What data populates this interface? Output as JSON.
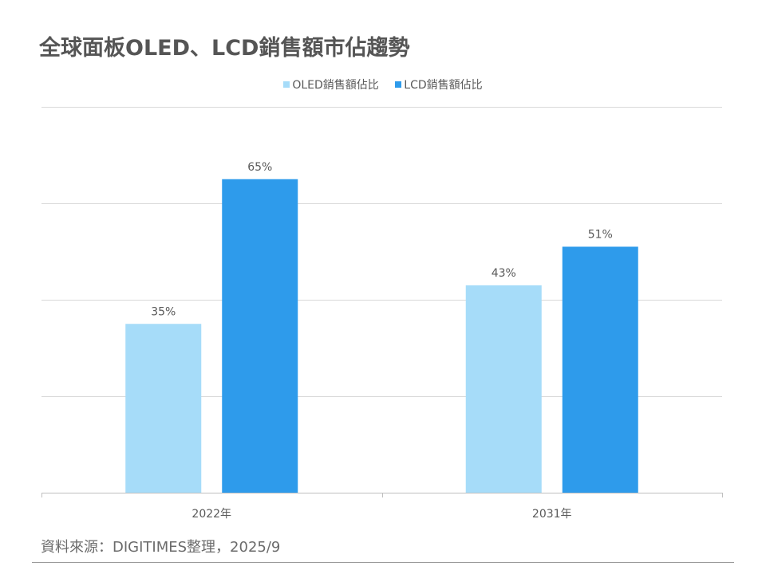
{
  "title": "全球面板OLED、LCD銷售額市佔趨勢",
  "source": "資料來源：DIGITIMES整理，2025/9",
  "colors": {
    "oled": "#A6DCF9",
    "lcd": "#2E9BEB",
    "grid": "#D9D9D9",
    "axis": "#BFBFBF",
    "text": "#595959"
  },
  "chart_data": {
    "type": "bar",
    "title": "全球面板OLED、LCD銷售額市佔趨勢",
    "categories": [
      "2022年",
      "2031年"
    ],
    "series": [
      {
        "name": "OLED銷售額佔比",
        "values": [
          35,
          43
        ],
        "labels": [
          "35%",
          "43%"
        ],
        "color": "#A6DCF9"
      },
      {
        "name": "LCD銷售額佔比",
        "values": [
          65,
          51
        ],
        "labels": [
          "65%",
          "51%"
        ],
        "color": "#2E9BEB"
      }
    ],
    "xlabel": "",
    "ylabel": "",
    "ylim": [
      0,
      80
    ],
    "grid": true,
    "legend": "top-center"
  }
}
